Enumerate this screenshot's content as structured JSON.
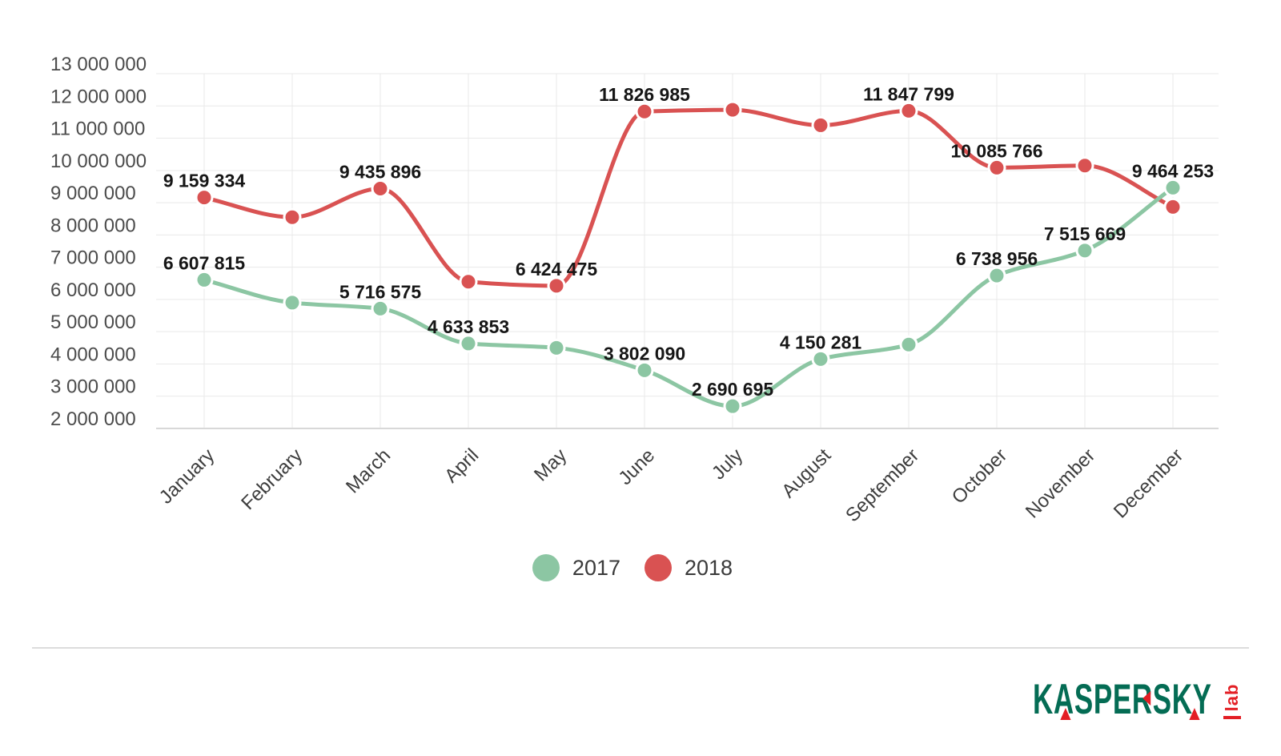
{
  "chart_data": {
    "type": "line",
    "title": "",
    "categories": [
      "January",
      "February",
      "March",
      "April",
      "May",
      "June",
      "July",
      "August",
      "September",
      "October",
      "November",
      "December"
    ],
    "ylim": [
      2000000,
      13000000
    ],
    "grid": true,
    "legend_position": "bottom-center",
    "y_ticks": [
      {
        "value": 13000000,
        "label": "13 000 000"
      },
      {
        "value": 12000000,
        "label": "12 000 000"
      },
      {
        "value": 11000000,
        "label": "11 000 000"
      },
      {
        "value": 10000000,
        "label": "10 000 000"
      },
      {
        "value": 9000000,
        "label": "9 000 000"
      },
      {
        "value": 8000000,
        "label": "8 000 000"
      },
      {
        "value": 7000000,
        "label": "7 000 000"
      },
      {
        "value": 6000000,
        "label": "6 000 000"
      },
      {
        "value": 5000000,
        "label": "5 000 000"
      },
      {
        "value": 4000000,
        "label": "4 000 000"
      },
      {
        "value": 3000000,
        "label": "3 000 000"
      },
      {
        "value": 2000000,
        "label": "2 000 000"
      }
    ],
    "series": [
      {
        "name": "2018",
        "color": "#d95252",
        "values": [
          9159334,
          8550000,
          9435896,
          6550000,
          6424475,
          11826985,
          11880000,
          11400000,
          11847799,
          10085766,
          10150000,
          8870000
        ],
        "point_labels": [
          "9 159 334",
          "",
          "9 435 896",
          "",
          "6 424 475",
          "11 826 985",
          "",
          "",
          "11 847 799",
          "10 085 766",
          "",
          ""
        ]
      },
      {
        "name": "2017",
        "color": "#8cc6a3",
        "values": [
          6607815,
          5900000,
          5716575,
          4633853,
          4500000,
          3802090,
          2690695,
          4150281,
          4600000,
          6738956,
          7515669,
          9464253
        ],
        "point_labels": [
          "6 607 815",
          "",
          "5 716 575",
          "4 633 853",
          "",
          "3 802 090",
          "2 690 695",
          "4 150 281",
          "",
          "6 738 956",
          "7 515 669",
          "9 464 253"
        ]
      }
    ]
  },
  "legend": {
    "items": [
      {
        "label": "2017"
      },
      {
        "label": "2018"
      }
    ]
  },
  "footer": {
    "logo": {
      "brand": "KASPERSKY",
      "suffix": "lab",
      "brand_color": "#046c54",
      "accent_color": "#e31e24"
    }
  }
}
